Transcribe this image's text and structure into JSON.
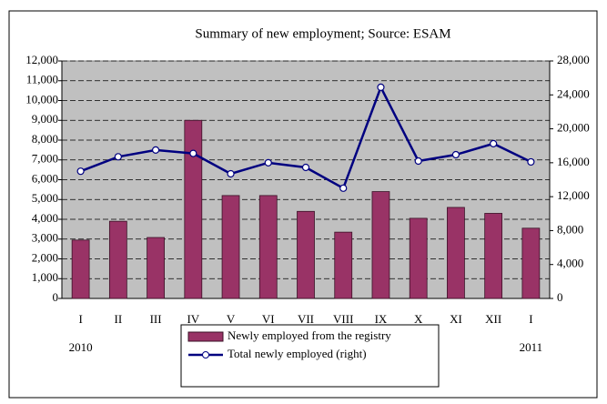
{
  "chart_data": {
    "type": "bar",
    "title": "Summary of new employment; Source: ESAM",
    "categories": [
      "I",
      "II",
      "III",
      "IV",
      "V",
      "VI",
      "VII",
      "VIII",
      "IX",
      "X",
      "XI",
      "XII",
      "I"
    ],
    "year_labels": [
      "2010",
      "2011"
    ],
    "series": [
      {
        "name": "Newly employed from the registry",
        "type": "bar",
        "color": "#993366",
        "values": [
          2950,
          3900,
          3080,
          9000,
          5200,
          5200,
          4400,
          3350,
          5400,
          4050,
          4600,
          4300,
          3550
        ]
      },
      {
        "name": "Total newly employed (right)",
        "type": "line",
        "axis": "y2",
        "color": "#000080",
        "values": [
          15000,
          16700,
          17500,
          17100,
          14700,
          16000,
          15450,
          13000,
          24900,
          16200,
          16950,
          18250,
          16100
        ]
      }
    ],
    "ylim": [
      0,
      12000
    ],
    "yticks": [
      0,
      {
        "value": 1000,
        "label": "1,000"
      },
      {
        "value": 2000,
        "label": "2,000"
      },
      {
        "value": 3000,
        "label": "3,000"
      },
      {
        "value": 4000,
        "label": "4,000"
      },
      {
        "value": 5000,
        "label": "5,000"
      },
      {
        "value": 6000,
        "label": "6,000"
      },
      {
        "value": 7000,
        "label": "7,000"
      },
      {
        "value": 8000,
        "label": "8,000"
      },
      {
        "value": 9000,
        "label": "9,000"
      },
      {
        "value": 10000,
        "label": "10,000"
      },
      {
        "value": 11000,
        "label": "11,000"
      },
      {
        "value": 12000,
        "label": "12,000"
      }
    ],
    "y2lim": [
      0,
      28000
    ],
    "y2ticks": [
      0,
      {
        "value": 4000,
        "label": "4,000"
      },
      {
        "value": 8000,
        "label": "8,000"
      },
      {
        "value": 12000,
        "label": "12,000"
      },
      {
        "value": 16000,
        "label": "16,000"
      },
      {
        "value": 20000,
        "label": "20,000"
      },
      {
        "value": 24000,
        "label": "24,000"
      },
      {
        "value": 28000,
        "label": "28,000"
      }
    ],
    "grid": true
  }
}
